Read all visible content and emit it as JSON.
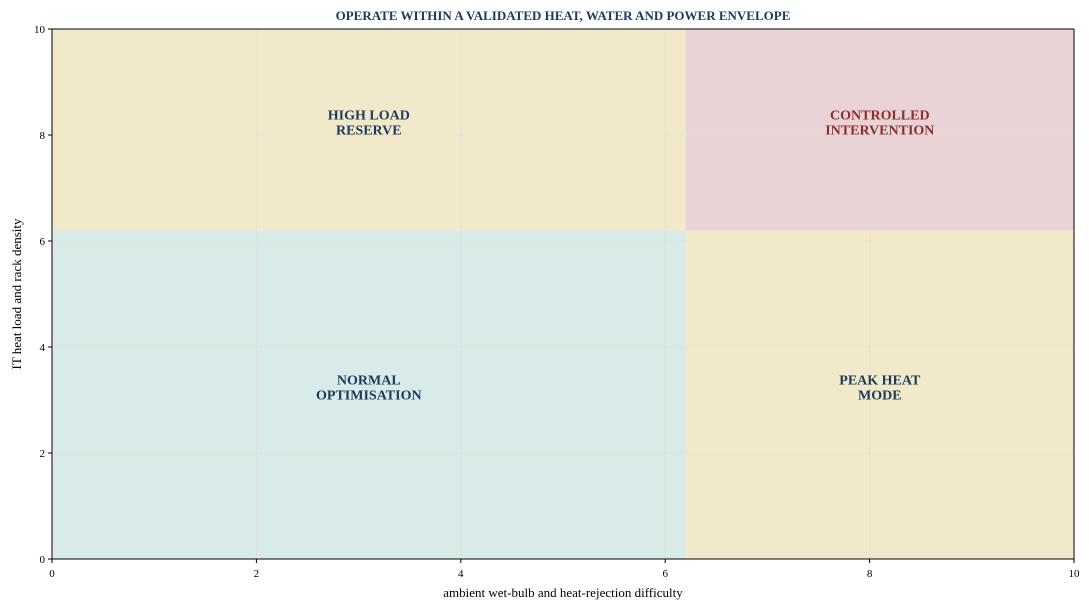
{
  "chart_data": {
    "type": "quadrant",
    "title": "OPERATE WITHIN A VALIDATED HEAT, WATER AND POWER ENVELOPE",
    "xlabel": "ambient wet-bulb and heat-rejection difficulty",
    "ylabel": "IT heat load and rack density",
    "xlim": [
      0,
      10
    ],
    "ylim": [
      0,
      10
    ],
    "xticks": [
      0,
      2,
      4,
      6,
      8,
      10
    ],
    "yticks": [
      0,
      2,
      4,
      6,
      8,
      10
    ],
    "grid": true,
    "x_threshold": 6.2,
    "y_threshold": 6.2,
    "colors": {
      "title": "#1b3a5c",
      "label_default": "#1b3a5c",
      "label_alert": "#8b2e2e",
      "zone_normal": "#d8ebe9",
      "zone_caution": "#f2e9ca",
      "zone_alert": "#ead3d6",
      "grid": "#e3dfd2",
      "axis": "#000000"
    },
    "zones": [
      {
        "name": "NORMAL OPTIMISATION",
        "lines": [
          "NORMAL",
          "OPTIMISATION"
        ],
        "x": [
          0,
          6.2
        ],
        "y": [
          0,
          6.2
        ],
        "label_at": [
          3.1,
          3.1
        ],
        "fill": "zone_normal",
        "text": "label_default"
      },
      {
        "name": "PEAK HEAT MODE",
        "lines": [
          "PEAK HEAT",
          "MODE"
        ],
        "x": [
          6.2,
          10
        ],
        "y": [
          0,
          6.2
        ],
        "label_at": [
          8.1,
          3.1
        ],
        "fill": "zone_caution",
        "text": "label_default"
      },
      {
        "name": "HIGH LOAD RESERVE",
        "lines": [
          "HIGH LOAD",
          "RESERVE"
        ],
        "x": [
          0,
          6.2
        ],
        "y": [
          6.2,
          10
        ],
        "label_at": [
          3.1,
          8.1
        ],
        "fill": "zone_caution",
        "text": "label_default"
      },
      {
        "name": "CONTROLLED INTERVENTION",
        "lines": [
          "CONTROLLED",
          "INTERVENTION"
        ],
        "x": [
          6.2,
          10
        ],
        "y": [
          6.2,
          10
        ],
        "label_at": [
          8.1,
          8.1
        ],
        "fill": "zone_alert",
        "text": "label_alert"
      }
    ]
  }
}
